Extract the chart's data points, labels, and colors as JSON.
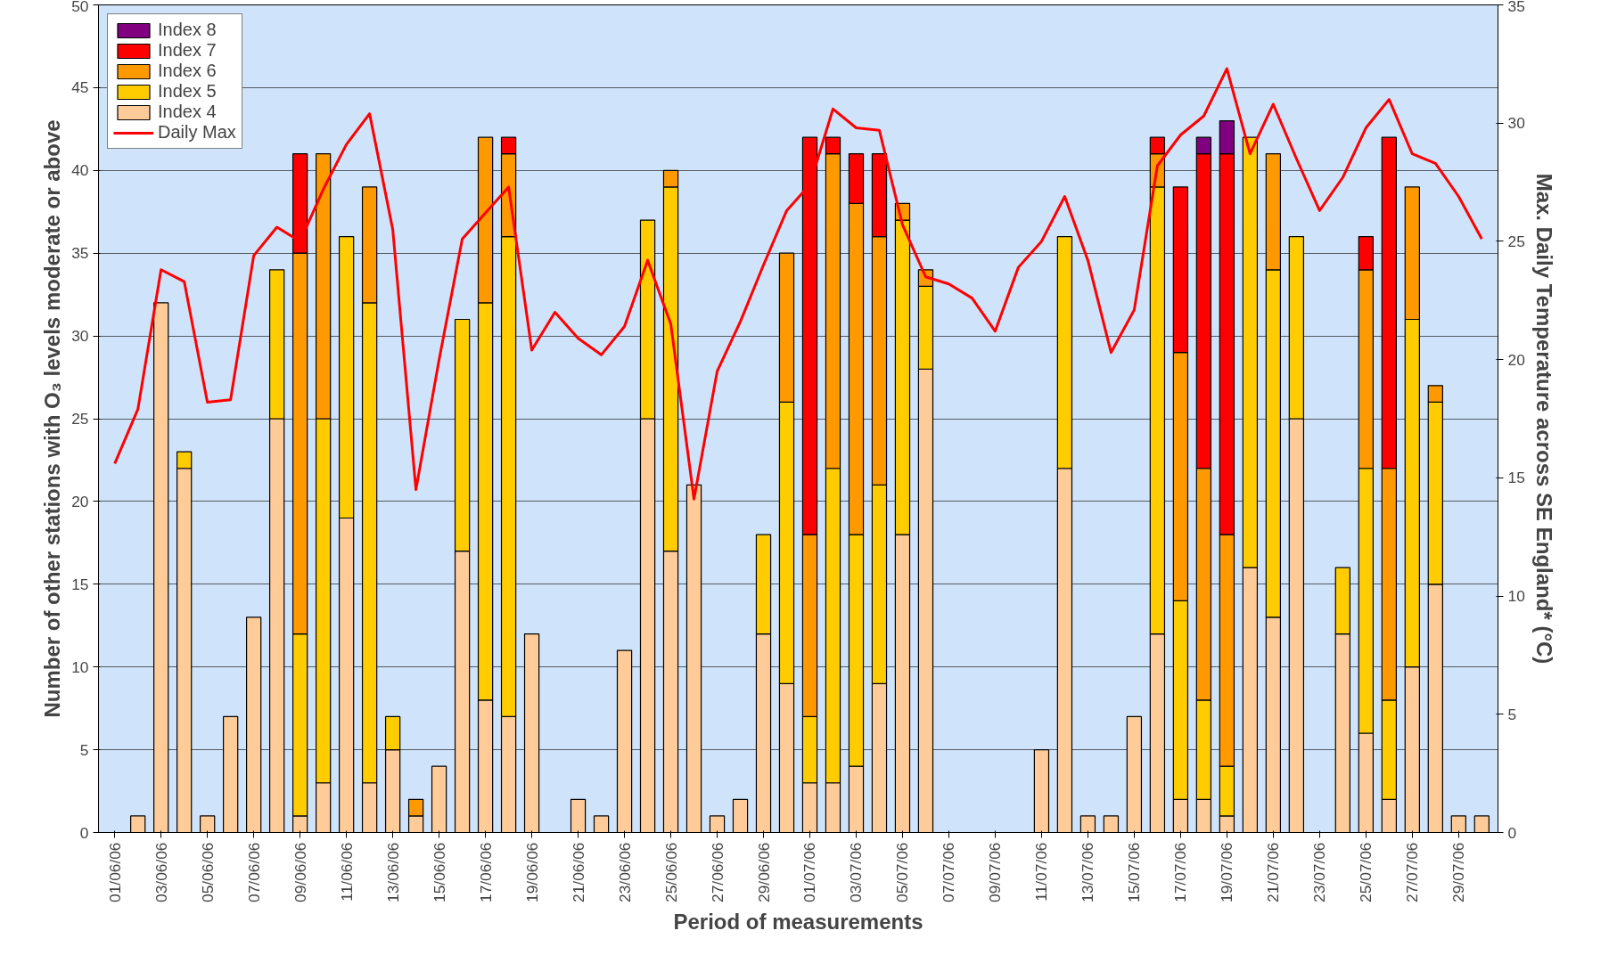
{
  "chart_data": {
    "type": "bar",
    "stacked": true,
    "xlabel": "Period of measurements",
    "ylabel": "Number of other stations with O₃ levels moderate or above",
    "y2label": "Max. Daily Temperature across SE England* (°C)",
    "categories": [
      "01/06/06",
      null,
      "03/06/06",
      null,
      "05/06/06",
      null,
      "07/06/06",
      null,
      "09/06/06",
      null,
      "11/06/06",
      null,
      "13/06/06",
      null,
      "15/06/06",
      null,
      "17/06/06",
      null,
      "19/06/06",
      null,
      "21/06/06",
      null,
      "23/06/06",
      null,
      "25/06/06",
      null,
      "27/06/06",
      null,
      "29/06/06",
      null,
      "01/07/06",
      null,
      "03/07/06",
      null,
      "05/07/06",
      null,
      "07/07/06",
      null,
      "09/07/06",
      null,
      "11/07/06",
      null,
      "13/07/06",
      null,
      "15/07/06",
      null,
      "17/07/06",
      null,
      "19/07/06",
      null,
      "21/07/06",
      null,
      "23/07/06",
      null,
      "25/07/06",
      null,
      "27/07/06",
      null,
      "29/07/06",
      null
    ],
    "ylim": [
      0,
      50
    ],
    "yticks": [
      0,
      5,
      10,
      15,
      20,
      25,
      30,
      35,
      40,
      45,
      50
    ],
    "y2lim": [
      0,
      35
    ],
    "y2ticks": [
      0,
      5,
      10,
      15,
      20,
      25,
      30,
      35
    ],
    "grid": "y",
    "legend": "top left",
    "series": [
      {
        "name": "Index 4",
        "color": "#ffcc99",
        "values": [
          null,
          1,
          32,
          22,
          1,
          7,
          13,
          25,
          1,
          3,
          19,
          3,
          5,
          1,
          4,
          17,
          8,
          7,
          12,
          null,
          2,
          1,
          11,
          25,
          17,
          21,
          1,
          2,
          12,
          9,
          3,
          3,
          4,
          9,
          18,
          28,
          null,
          null,
          null,
          null,
          5,
          22,
          1,
          1,
          7,
          12,
          2,
          2,
          1,
          16,
          13,
          25,
          null,
          12,
          6,
          2,
          10,
          15,
          1,
          1
        ]
      },
      {
        "name": "Index 5",
        "color": "#ffcc00",
        "values": [
          null,
          null,
          null,
          1,
          null,
          null,
          null,
          9,
          11,
          22,
          17,
          29,
          2,
          null,
          null,
          14,
          24,
          29,
          null,
          null,
          null,
          null,
          null,
          12,
          22,
          null,
          null,
          null,
          6,
          17,
          4,
          19,
          14,
          12,
          19,
          5,
          null,
          null,
          null,
          null,
          null,
          14,
          null,
          null,
          null,
          27,
          12,
          6,
          3,
          26,
          21,
          11,
          null,
          4,
          16,
          6,
          21,
          11,
          null,
          null
        ]
      },
      {
        "name": "Index 6",
        "color": "#ff9900",
        "values": [
          null,
          null,
          null,
          null,
          null,
          null,
          null,
          null,
          23,
          16,
          null,
          7,
          null,
          1,
          null,
          null,
          10,
          5,
          null,
          null,
          null,
          null,
          null,
          null,
          1,
          null,
          null,
          null,
          null,
          9,
          11,
          19,
          20,
          15,
          1,
          1,
          null,
          null,
          null,
          null,
          null,
          null,
          null,
          null,
          null,
          2,
          15,
          14,
          14,
          null,
          7,
          null,
          null,
          null,
          12,
          14,
          8,
          1,
          null,
          null
        ]
      },
      {
        "name": "Index 7",
        "color": "#ff0000",
        "values": [
          null,
          null,
          null,
          null,
          null,
          null,
          null,
          null,
          6,
          null,
          null,
          null,
          null,
          null,
          null,
          null,
          null,
          1,
          null,
          null,
          null,
          null,
          null,
          null,
          null,
          null,
          null,
          null,
          null,
          null,
          24,
          1,
          3,
          5,
          null,
          null,
          null,
          null,
          null,
          null,
          null,
          null,
          null,
          null,
          null,
          1,
          10,
          19,
          23,
          null,
          null,
          null,
          null,
          null,
          2,
          20,
          null,
          null,
          null,
          null
        ]
      },
      {
        "name": "Index 8",
        "color": "#800080",
        "values": [
          null,
          null,
          null,
          null,
          null,
          null,
          null,
          null,
          null,
          null,
          null,
          null,
          null,
          null,
          null,
          null,
          null,
          null,
          null,
          null,
          null,
          null,
          null,
          null,
          null,
          null,
          null,
          null,
          null,
          null,
          null,
          null,
          null,
          null,
          null,
          null,
          null,
          null,
          null,
          null,
          null,
          null,
          null,
          null,
          null,
          null,
          null,
          1,
          2,
          null,
          null,
          null,
          null,
          null,
          null,
          null,
          null,
          null,
          null,
          null
        ]
      },
      {
        "name": "Daily Max",
        "type": "line",
        "axis": "y2",
        "color": "#ff0000",
        "values": [
          15.6,
          17.9,
          23.8,
          23.3,
          18.2,
          18.3,
          24.4,
          25.6,
          25.0,
          27.2,
          29.1,
          30.4,
          25.5,
          14.5,
          20.0,
          25.1,
          26.2,
          27.3,
          20.4,
          22.0,
          20.9,
          20.2,
          21.4,
          24.2,
          21.5,
          14.1,
          19.5,
          21.6,
          24.0,
          26.3,
          27.4,
          30.6,
          29.8,
          29.7,
          25.7,
          23.5,
          23.2,
          22.6,
          21.2,
          23.9,
          25.0,
          26.9,
          24.2,
          20.3,
          22.1,
          28.2,
          29.5,
          30.3,
          32.3,
          28.7,
          30.8,
          28.5,
          26.3,
          27.7,
          29.8,
          31.0,
          28.7,
          28.3,
          26.9,
          25.1
        ]
      }
    ]
  }
}
